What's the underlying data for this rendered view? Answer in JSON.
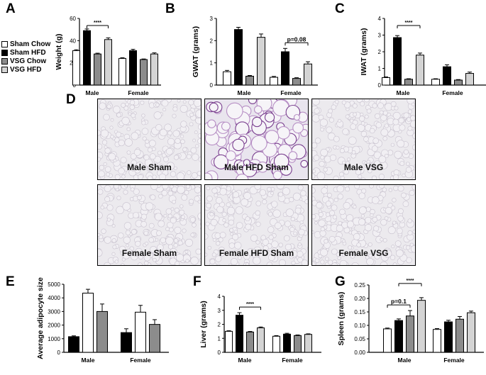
{
  "panel_letters": {
    "A": "A",
    "B": "B",
    "C": "C",
    "D": "D",
    "E": "E",
    "F": "F",
    "G": "G"
  },
  "legend": [
    {
      "label": "Sham Chow",
      "color": "#ffffff"
    },
    {
      "label": "Sham HFD",
      "color": "#000000"
    },
    {
      "label": "VSG Chow",
      "color": "#8c8c8c"
    },
    {
      "label": "VSG HFD",
      "color": "#d4d4d4"
    }
  ],
  "micrographs": [
    {
      "label": "Male Sham",
      "stained": false
    },
    {
      "label": "Male HFD Sham",
      "stained": true
    },
    {
      "label": "Male VSG",
      "stained": false
    },
    {
      "label": "Female Sham",
      "stained": false
    },
    {
      "label": "Female HFD Sham",
      "stained": false
    },
    {
      "label": "Female VSG",
      "stained": false
    }
  ],
  "chart_data": [
    {
      "id": "A",
      "type": "bar",
      "categories": [
        "Male",
        "Female"
      ],
      "ylabel": "Weight (g)",
      "ylim": [
        0,
        60
      ],
      "yticks": [
        "0",
        "20",
        "40",
        "60"
      ],
      "series": [
        {
          "name": "Sham Chow",
          "values": [
            31,
            24
          ],
          "err": [
            0.8,
            0.6
          ]
        },
        {
          "name": "Sham HFD",
          "values": [
            49,
            31
          ],
          "err": [
            1.5,
            1.2
          ]
        },
        {
          "name": "VSG Chow",
          "values": [
            28,
            23
          ],
          "err": [
            0.7,
            0.5
          ]
        },
        {
          "name": "VSG HFD",
          "values": [
            41,
            28
          ],
          "err": [
            1.5,
            1.0
          ]
        }
      ],
      "annotations": [
        {
          "text": "****",
          "from": [
            0,
            1
          ],
          "to": [
            0,
            3
          ]
        }
      ]
    },
    {
      "id": "B",
      "type": "bar",
      "categories": [
        "Male",
        "Female"
      ],
      "ylabel": "GWAT (grams)",
      "ylim": [
        0,
        3
      ],
      "yticks": [
        "0",
        "1",
        "2",
        "3"
      ],
      "series": [
        {
          "name": "Sham Chow",
          "values": [
            0.6,
            0.35
          ],
          "err": [
            0.06,
            0.04
          ]
        },
        {
          "name": "Sham HFD",
          "values": [
            2.5,
            1.5
          ],
          "err": [
            0.1,
            0.15
          ]
        },
        {
          "name": "VSG Chow",
          "values": [
            0.4,
            0.3
          ],
          "err": [
            0.03,
            0.03
          ]
        },
        {
          "name": "VSG HFD",
          "values": [
            2.15,
            0.95
          ],
          "err": [
            0.15,
            0.1
          ]
        }
      ],
      "annotations": [
        {
          "text": "p=0.08",
          "from": [
            1,
            1
          ],
          "to": [
            1,
            3
          ]
        }
      ]
    },
    {
      "id": "C",
      "type": "bar",
      "categories": [
        "Male",
        "Female"
      ],
      "ylabel": "IWAT (grams)",
      "ylim": [
        0,
        4
      ],
      "yticks": [
        "0",
        "1",
        "2",
        "3",
        "4"
      ],
      "series": [
        {
          "name": "Sham Chow",
          "values": [
            0.45,
            0.35
          ],
          "err": [
            0.04,
            0.03
          ]
        },
        {
          "name": "Sham HFD",
          "values": [
            2.85,
            1.1
          ],
          "err": [
            0.12,
            0.12
          ]
        },
        {
          "name": "VSG Chow",
          "values": [
            0.35,
            0.3
          ],
          "err": [
            0.03,
            0.03
          ]
        },
        {
          "name": "VSG HFD",
          "values": [
            1.8,
            0.7
          ],
          "err": [
            0.12,
            0.08
          ]
        }
      ],
      "annotations": [
        {
          "text": "****",
          "from": [
            0,
            1
          ],
          "to": [
            0,
            3
          ]
        }
      ]
    },
    {
      "id": "E",
      "type": "bar",
      "categories": [
        "Male",
        "Female"
      ],
      "ylabel": "Average adipocyte size",
      "ylim": [
        0,
        5000
      ],
      "yticks": [
        "0",
        "1000",
        "2000",
        "3000",
        "4000",
        "5000"
      ],
      "series": [
        {
          "name": "Sham HFD",
          "values": [
            1150,
            1450
          ],
          "err": [
            60,
            280
          ]
        },
        {
          "name": "Sham Chow",
          "values": [
            4350,
            2950
          ],
          "err": [
            280,
            500
          ]
        },
        {
          "name": "VSG Chow",
          "values": [
            3000,
            2050
          ],
          "err": [
            550,
            350
          ]
        }
      ],
      "annotations": []
    },
    {
      "id": "F",
      "type": "bar",
      "categories": [
        "Male",
        "Female"
      ],
      "ylabel": "Liver (grams)",
      "ylim": [
        0,
        4
      ],
      "yticks": [
        "0",
        "1",
        "2",
        "3",
        "4"
      ],
      "series": [
        {
          "name": "Sham Chow",
          "values": [
            1.5,
            1.15
          ],
          "err": [
            0.04,
            0.04
          ]
        },
        {
          "name": "Sham HFD",
          "values": [
            2.65,
            1.3
          ],
          "err": [
            0.18,
            0.06
          ]
        },
        {
          "name": "VSG Chow",
          "values": [
            1.45,
            1.2
          ],
          "err": [
            0.04,
            0.04
          ]
        },
        {
          "name": "VSG HFD",
          "values": [
            1.75,
            1.28
          ],
          "err": [
            0.06,
            0.04
          ]
        }
      ],
      "annotations": [
        {
          "text": "****",
          "from": [
            0,
            1
          ],
          "to": [
            0,
            3
          ]
        }
      ]
    },
    {
      "id": "G",
      "type": "bar",
      "categories": [
        "Male",
        "Female"
      ],
      "ylabel": "Spleen (grams)",
      "ylim": [
        0,
        0.25
      ],
      "yticks": [
        "0.00",
        "0.05",
        "0.10",
        "0.15",
        "0.20",
        "0.25"
      ],
      "series": [
        {
          "name": "Sham Chow",
          "values": [
            0.087,
            0.085
          ],
          "err": [
            0.003,
            0.003
          ]
        },
        {
          "name": "Sham HFD",
          "values": [
            0.118,
            0.113
          ],
          "err": [
            0.006,
            0.006
          ]
        },
        {
          "name": "VSG Chow",
          "values": [
            0.135,
            0.123
          ],
          "err": [
            0.02,
            0.01
          ]
        },
        {
          "name": "VSG HFD",
          "values": [
            0.193,
            0.147
          ],
          "err": [
            0.01,
            0.006
          ]
        }
      ],
      "annotations": [
        {
          "text": "p=0.1",
          "from": [
            0,
            0
          ],
          "to": [
            0,
            2
          ]
        },
        {
          "text": "****",
          "from": [
            0,
            1
          ],
          "to": [
            0,
            3
          ]
        }
      ]
    }
  ]
}
